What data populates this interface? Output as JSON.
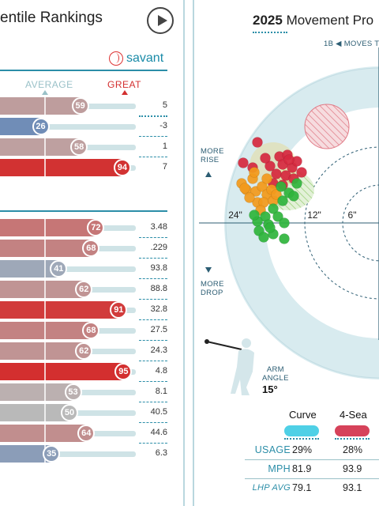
{
  "left_panel": {
    "title": "entile Rankings",
    "brand": "savant",
    "header_avg": "AVERAGE",
    "header_great": "GREAT",
    "colors": {
      "great": "#d32f2f",
      "avg": "#9ac1c8",
      "poor": "#3f6fb5",
      "accent": "#2c8ea8"
    },
    "group1": [
      {
        "pct": "59",
        "percentile": 59,
        "value": "5"
      },
      {
        "pct": "26",
        "percentile": 26,
        "value": "-3"
      },
      {
        "pct": "58",
        "percentile": 58,
        "value": "1"
      },
      {
        "pct": "94",
        "percentile": 94,
        "value": "7"
      }
    ],
    "group2": [
      {
        "pct": "72",
        "percentile": 72,
        "value": "3.48"
      },
      {
        "pct": "68",
        "percentile": 68,
        "value": ".229"
      },
      {
        "pct": "41",
        "percentile": 41,
        "value": "93.8"
      },
      {
        "pct": "62",
        "percentile": 62,
        "value": "88.8"
      },
      {
        "pct": "91",
        "percentile": 91,
        "value": "32.8"
      },
      {
        "pct": "68",
        "percentile": 68,
        "value": "27.5"
      },
      {
        "pct": "62",
        "percentile": 62,
        "value": "24.3"
      },
      {
        "pct": "95",
        "percentile": 95,
        "value": "4.8"
      },
      {
        "pct": "53",
        "percentile": 53,
        "value": "8.1"
      },
      {
        "pct": "50",
        "percentile": 50,
        "value": "40.5"
      },
      {
        "pct": "64",
        "percentile": 64,
        "value": "44.6"
      },
      {
        "pct": "35",
        "percentile": 35,
        "value": "6.3"
      }
    ]
  },
  "right_panel": {
    "title_year": "2025",
    "title_rest": "Movement Pro",
    "moves_label": "1B ◀ MOVES T",
    "ring_labels": [
      "24\"",
      "12\"",
      "6\""
    ],
    "more_rise": [
      "MORE",
      "RISE"
    ],
    "more_drop": [
      "MORE",
      "DROP"
    ],
    "arm_angle_label": [
      "ARM",
      "ANGLE"
    ],
    "arm_angle_value": "15°",
    "pitches": [
      {
        "name": "Curve",
        "color": "#4fd0e6"
      },
      {
        "name": "4-Sea",
        "color": "#d6425a"
      }
    ],
    "stats": [
      {
        "label": "USAGE",
        "values": [
          "29%",
          "28%"
        ],
        "italic": false
      },
      {
        "label": "MPH",
        "values": [
          "81.9",
          "93.9"
        ],
        "italic": false
      },
      {
        "label": "LHP AVG",
        "values": [
          "79.1",
          "93.1"
        ],
        "italic": true
      }
    ]
  }
}
